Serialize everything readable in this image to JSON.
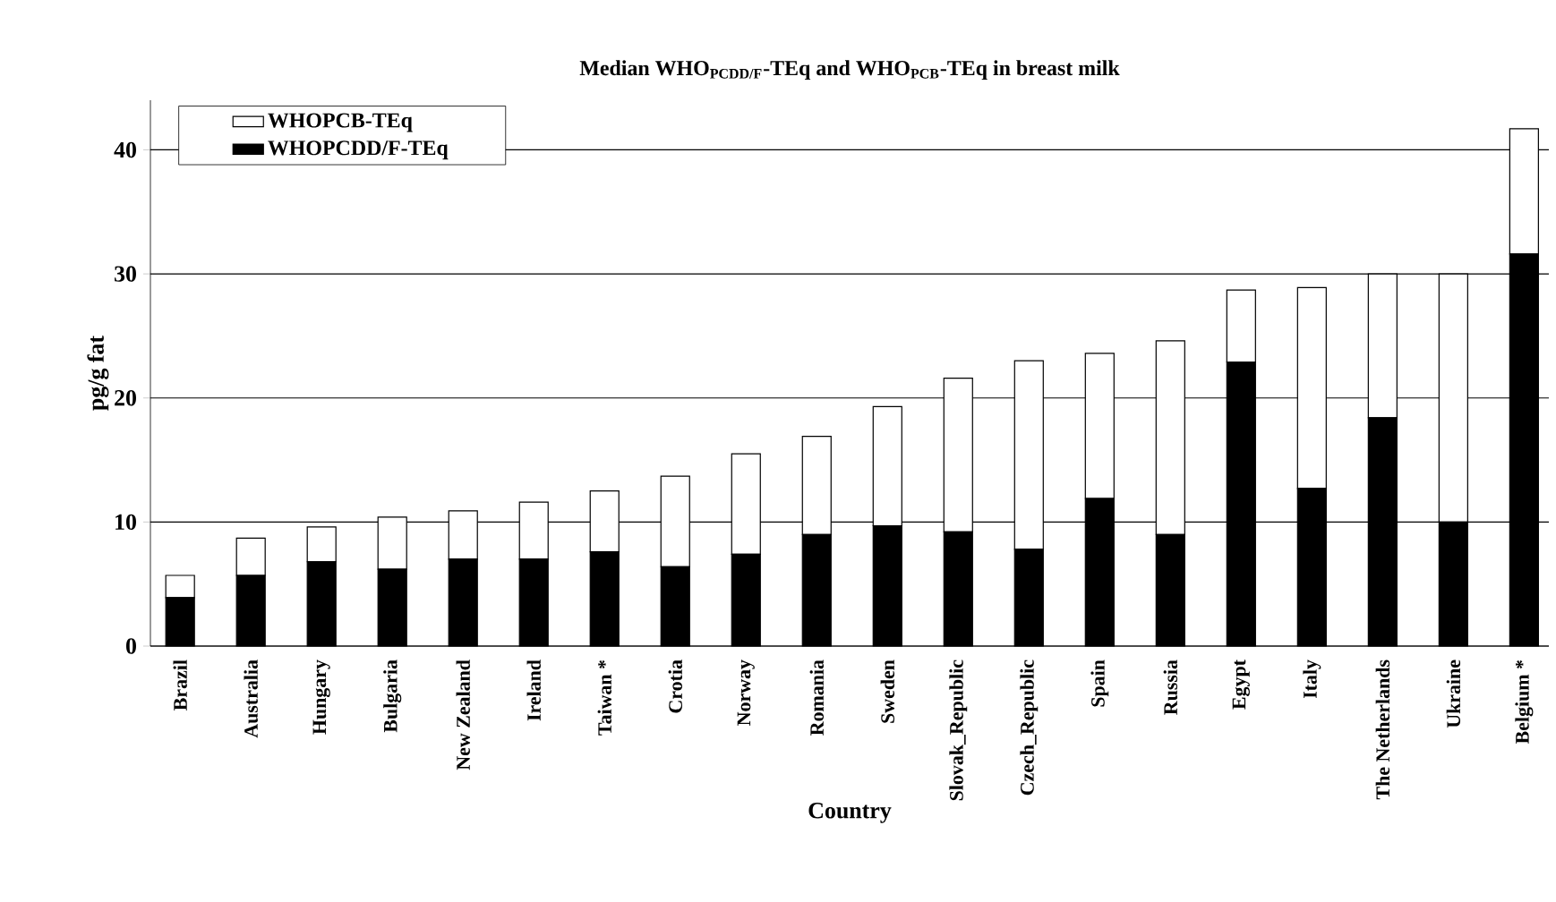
{
  "chart_data": {
    "type": "bar",
    "stacked": true,
    "title": "Median WHO$_{PCDD/F}$-TEq and WHO$_{PCB}$-TEq in breast milk",
    "xlabel": "Country",
    "ylabel": "pg/g fat",
    "categories": [
      "Brazil",
      "Australia",
      "Hungary",
      "Bulgaria",
      "New Zealand",
      "Ireland",
      "Taiwan *",
      "Crotia",
      "Norway",
      "Romania",
      "Sweden",
      "Slovak_Republic",
      "Czech_Republic",
      "Spain",
      "Russia",
      "Egypt",
      "Italy",
      "The Netherlands",
      "Ukraine",
      "Belgium *"
    ],
    "series": [
      {
        "name": "WHOPCDD/F-TEq",
        "color": "#000000",
        "values": [
          3.9,
          5.7,
          6.8,
          6.2,
          7.0,
          7.0,
          7.6,
          6.4,
          7.4,
          9.0,
          9.7,
          9.2,
          7.8,
          11.9,
          9.0,
          22.9,
          12.7,
          18.4,
          10.0,
          31.6
        ]
      },
      {
        "name": "WHOPCB-TEq",
        "color": "#ffffff",
        "values": [
          1.8,
          3.0,
          2.8,
          4.2,
          3.9,
          4.6,
          4.9,
          7.3,
          8.1,
          7.9,
          9.6,
          12.4,
          15.2,
          11.7,
          15.6,
          5.8,
          16.2,
          11.6,
          20.0,
          10.1
        ]
      }
    ],
    "ylim": [
      0,
      44
    ],
    "yticks": [
      0,
      10,
      20,
      30,
      40
    ],
    "grid": "y",
    "legend": "top left"
  }
}
